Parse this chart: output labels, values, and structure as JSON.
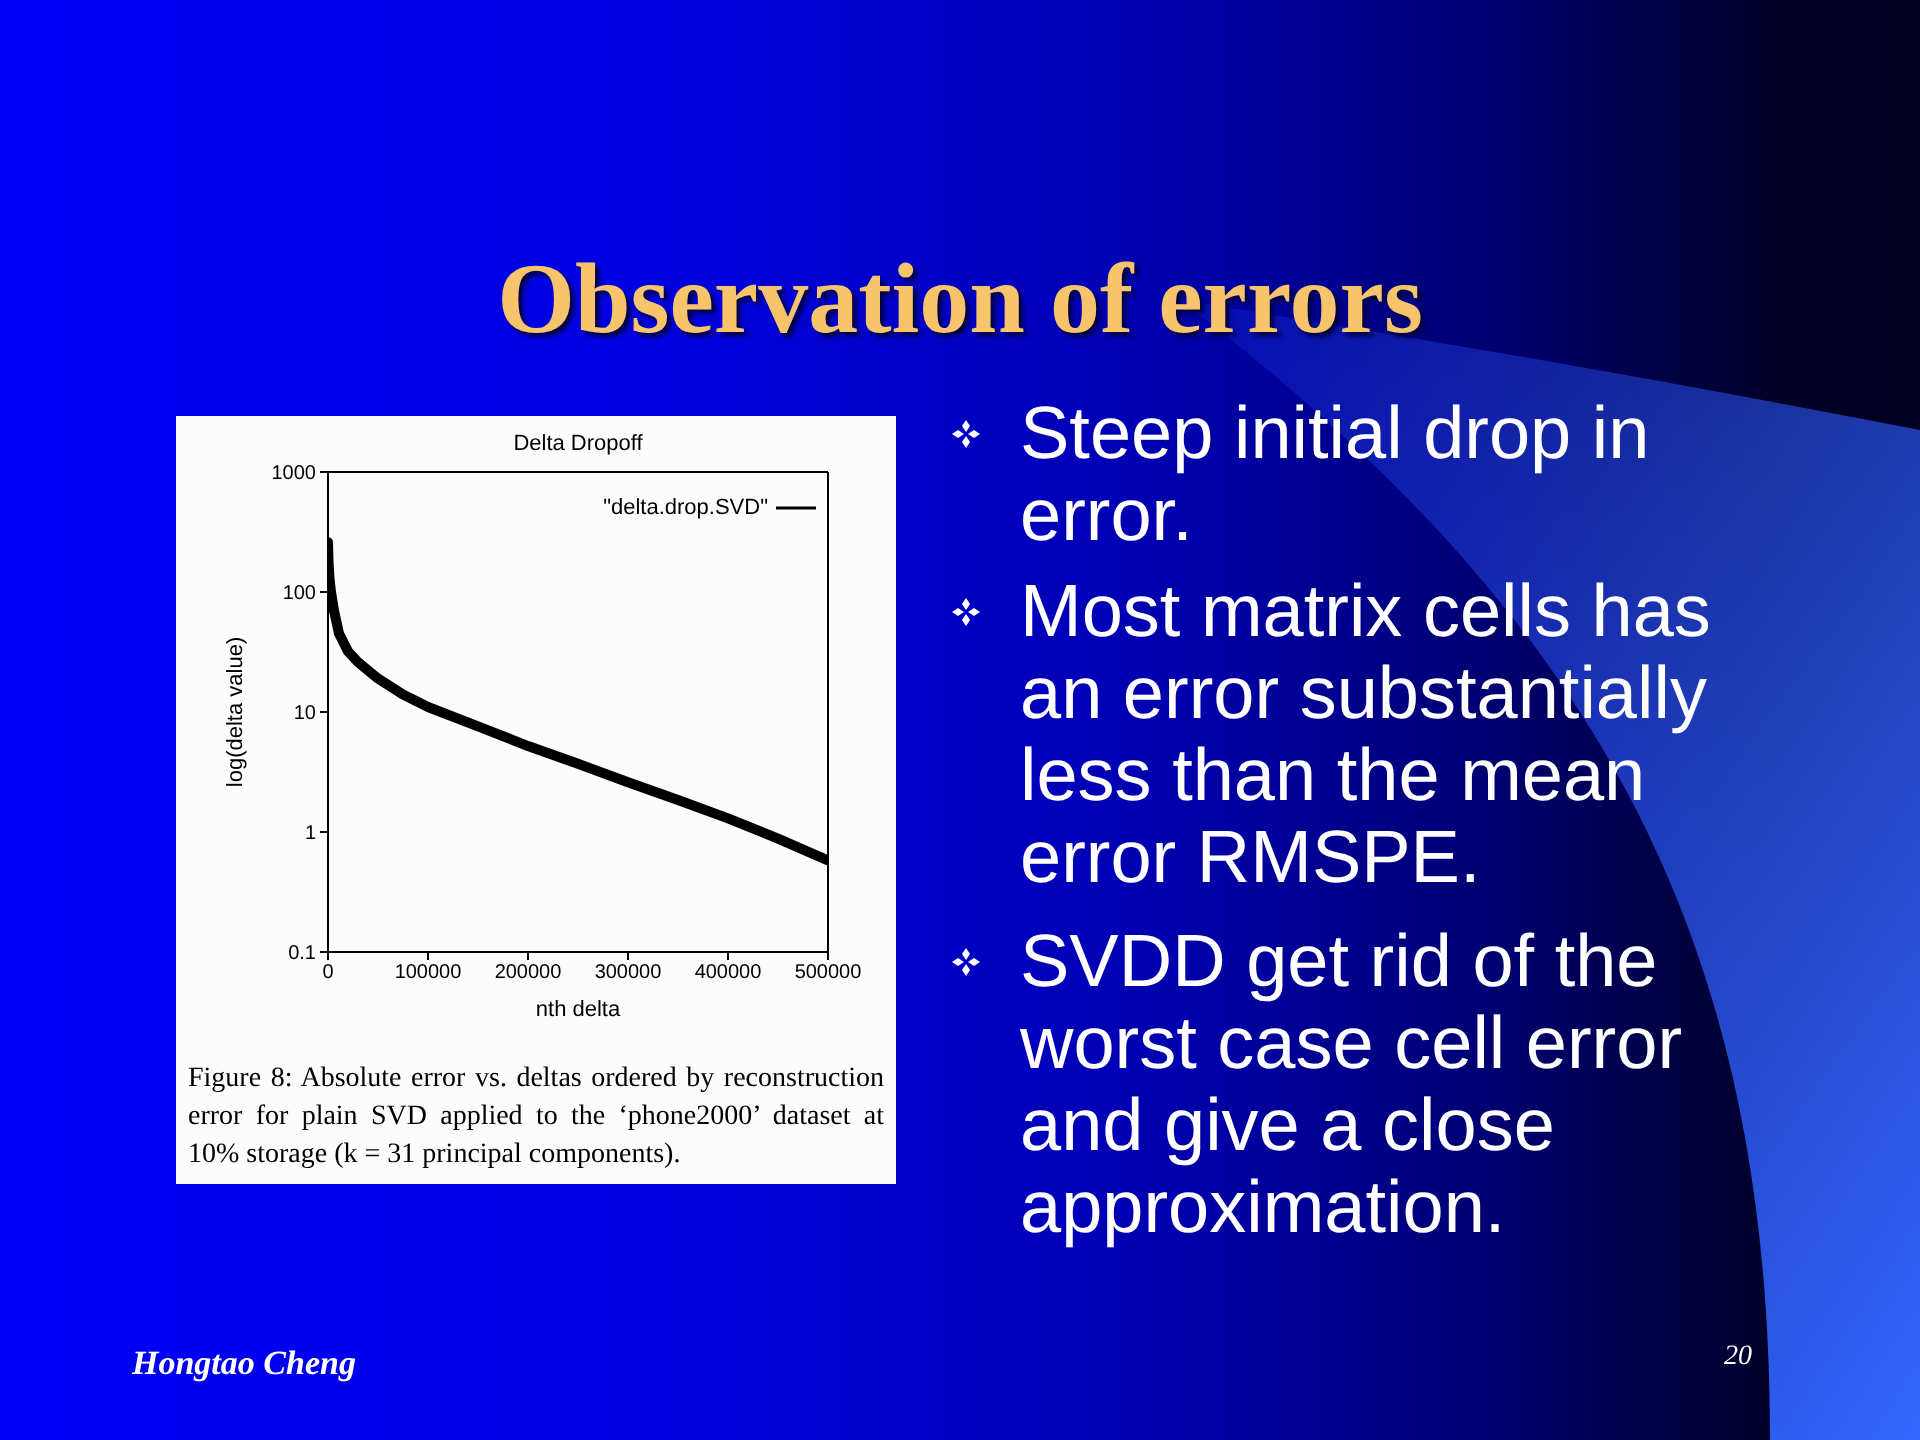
{
  "chart_data": {
    "type": "line",
    "title": "Observation of errors",
    "subtitle": "Delta Dropoff",
    "xlabel": "nth delta",
    "ylabel": "log(delta value)",
    "x": [
      0,
      500,
      1500,
      3000,
      6000,
      11000,
      20000,
      30000,
      50000,
      75000,
      100000,
      150000,
      200000,
      250000,
      300000,
      350000,
      400000,
      450000,
      500000
    ],
    "series": [
      {
        "name": "\"delta.drop.SVD\"",
        "color": "#000000",
        "values": [
          260,
          180,
          130,
          100,
          70,
          45,
          32,
          26,
          19,
          14,
          11,
          7.6,
          5.2,
          3.7,
          2.6,
          1.85,
          1.3,
          0.88,
          0.58
        ]
      }
    ],
    "xlim": [
      0,
      500000
    ],
    "xticks": [
      0,
      100000,
      200000,
      300000,
      400000,
      500000
    ],
    "ylim": [
      0.1,
      1000
    ],
    "yticks": [
      0.1,
      1,
      10,
      100,
      1000
    ],
    "log": "y",
    "legend": "top right",
    "annotations": [
      "Figure 8: Absolute error vs. deltas ordered by reconstruction error for plain SVD applied to the ‘phone2000’ dataset at 10% storage (k = 31 principal components).",
      "Steep initial drop in error.",
      "Most matrix cells has an error substantially less than the mean error RMSPE.",
      "SVDD get rid of the worst case cell error and give a close approximation.",
      "Hongtao Cheng",
      "20"
    ]
  }
}
